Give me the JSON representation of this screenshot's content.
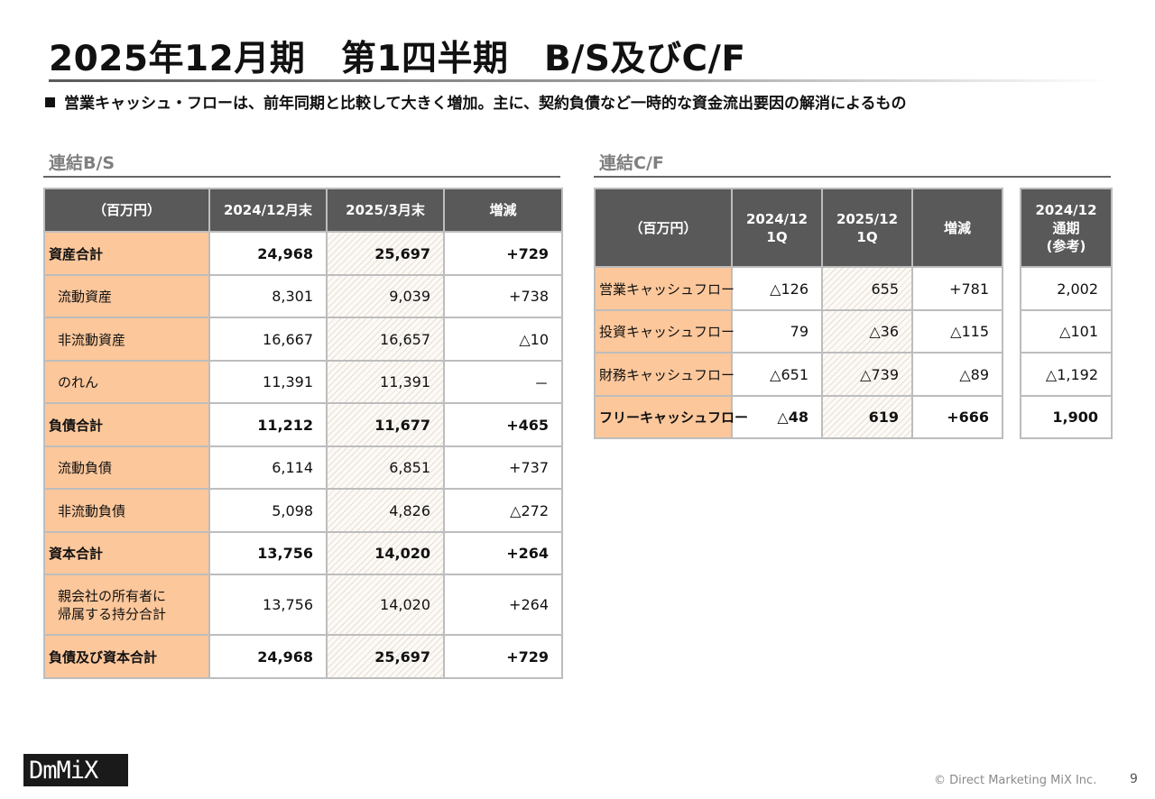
{
  "title": "2025年12月期　第1四半期　B/S及びC/F",
  "summary": "営業キャッシュ・フローは、前年同期と比較して大きく増加。主に、契約負債など一時的な資金流出要因の解消によるもの",
  "bs": {
    "section_label": "連結B/S",
    "headers": [
      "（百万円）",
      "2024/12月末",
      "2025/3月末",
      "増減"
    ],
    "rows": [
      {
        "label": "資産合計",
        "v1": "24,968",
        "v2": "25,697",
        "diff": "+729"
      },
      {
        "label": "流動資産",
        "v1": "8,301",
        "v2": "9,039",
        "diff": "+738"
      },
      {
        "label": "非流動資産",
        "v1": "16,667",
        "v2": "16,657",
        "diff": "△10"
      },
      {
        "label": "のれん",
        "v1": "11,391",
        "v2": "11,391",
        "diff": "－"
      },
      {
        "label": "負債合計",
        "v1": "11,212",
        "v2": "11,677",
        "diff": "+465"
      },
      {
        "label": "流動負債",
        "v1": "6,114",
        "v2": "6,851",
        "diff": "+737"
      },
      {
        "label": "非流動負債",
        "v1": "5,098",
        "v2": "4,826",
        "diff": "△272"
      },
      {
        "label": "資本合計",
        "v1": "13,756",
        "v2": "14,020",
        "diff": "+264"
      },
      {
        "label": "親会社の所有者に",
        "label2": "帰属する持分合計",
        "v1": "13,756",
        "v2": "14,020",
        "diff": "+264"
      },
      {
        "label": "負債及び資本合計",
        "v1": "24,968",
        "v2": "25,697",
        "diff": "+729"
      }
    ]
  },
  "cf": {
    "section_label": "連結C/F",
    "headers": [
      "（百万円）",
      "2024/12",
      "1Q",
      "2025/12",
      "1Q",
      "増減"
    ],
    "rows": [
      {
        "label": "営業キャッシュフロー",
        "v1": "△126",
        "v2": "655",
        "diff": "+781"
      },
      {
        "label": "投資キャッシュフロー",
        "v1": "79",
        "v2": "△36",
        "diff": "△115"
      },
      {
        "label": "財務キャッシュフロー",
        "v1": "△651",
        "v2": "△739",
        "diff": "△89"
      },
      {
        "label": "フリーキャッシュフロー",
        "v1": "△48",
        "v2": "619",
        "diff": "+666"
      }
    ]
  },
  "ref": {
    "headers": [
      "2024/12",
      "通期",
      "(参考)"
    ],
    "values": [
      "2,002",
      "△101",
      "△1,192",
      "1,900"
    ]
  },
  "footer": {
    "logo_text": "DmMiX",
    "copyright": "© Direct Marketing MiX Inc.",
    "page": "9"
  }
}
